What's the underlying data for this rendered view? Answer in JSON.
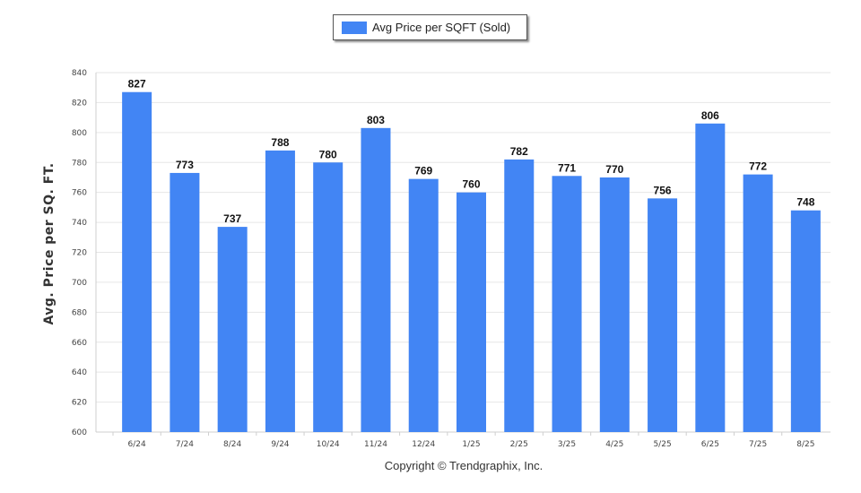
{
  "chart_data": {
    "type": "bar",
    "title": "",
    "xlabel": "",
    "ylabel": "Avg. Price per SQ. FT.",
    "legend": {
      "position": "top-center",
      "entries": [
        "Avg Price per SQFT (Sold)"
      ]
    },
    "categories": [
      "6/24",
      "7/24",
      "8/24",
      "9/24",
      "10/24",
      "11/24",
      "12/24",
      "1/25",
      "2/25",
      "3/25",
      "4/25",
      "5/25",
      "6/25",
      "7/25",
      "8/25"
    ],
    "series": [
      {
        "name": "Avg Price per SQFT (Sold)",
        "color": "#4285f4",
        "values": [
          827,
          773,
          737,
          788,
          780,
          803,
          769,
          760,
          782,
          771,
          770,
          756,
          806,
          772,
          748
        ]
      }
    ],
    "ylim": [
      600,
      840
    ],
    "yticks": [
      600,
      620,
      640,
      660,
      680,
      700,
      720,
      740,
      760,
      780,
      800,
      820,
      840
    ],
    "grid": true,
    "data_labels": true
  },
  "footer": {
    "copyright": "Copyright © Trendgraphix, Inc."
  }
}
